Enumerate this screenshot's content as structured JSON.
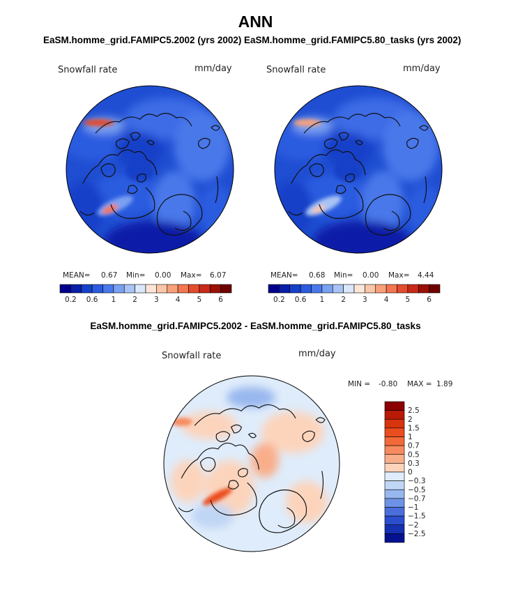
{
  "main_title": "ANN",
  "panels": [
    {
      "title": "EaSM.homme_grid.FAMIPC5.2002 (yrs 2002)",
      "variable": "Snowfall rate",
      "units": "mm/day",
      "stats": {
        "mean_label": "MEAN=",
        "mean": "0.67",
        "min_label": "Min=",
        "min": "0.00",
        "max_label": "Max=",
        "max": "6.07"
      }
    },
    {
      "title": "EaSM.homme_grid.FAMIPC5.80_tasks (yrs 2002)",
      "variable": "Snowfall rate",
      "units": "mm/day",
      "stats": {
        "mean_label": "MEAN=",
        "mean": "0.68",
        "min_label": "Min=",
        "min": "0.00",
        "max_label": "Max=",
        "max": "4.44"
      }
    }
  ],
  "difference": {
    "title": "EaSM.homme_grid.FAMIPC5.2002 - EaSM.homme_grid.FAMIPC5.80_tasks",
    "variable": "Snowfall rate",
    "units": "mm/day",
    "min_label": "MIN =",
    "min": "-0.80",
    "max_label": "MAX =",
    "max": "1.89"
  },
  "chart_data": [
    {
      "type": "heatmap",
      "title": "EaSM.homme_grid.FAMIPC5.2002 (yrs 2002)",
      "map": "north polar stereographic",
      "variable": "Snowfall rate",
      "units": "mm/day",
      "mean": 0.67,
      "min": 0.0,
      "max": 6.07,
      "colorbar_levels": [
        0.2,
        0.4,
        0.6,
        0.8,
        1,
        1.5,
        2,
        2.5,
        3,
        3.5,
        4,
        4.5,
        5,
        5.5,
        6
      ],
      "colorbar_tick_labels": [
        "0.2",
        "0.6",
        "1",
        "2",
        "3",
        "4",
        "5",
        "6"
      ],
      "colorbar_colors": [
        "#00008c",
        "#0a1fa8",
        "#1540c8",
        "#2a5be0",
        "#4a78ea",
        "#7aa0f0",
        "#a8c4f5",
        "#dbe8fb",
        "#fde6d8",
        "#fbc6a8",
        "#f8a07a",
        "#f37650",
        "#e44c2e",
        "#c82a16",
        "#9c1006",
        "#6e0000"
      ]
    },
    {
      "type": "heatmap",
      "title": "EaSM.homme_grid.FAMIPC5.80_tasks (yrs 2002)",
      "map": "north polar stereographic",
      "variable": "Snowfall rate",
      "units": "mm/day",
      "mean": 0.68,
      "min": 0.0,
      "max": 4.44,
      "colorbar_levels": [
        0.2,
        0.4,
        0.6,
        0.8,
        1,
        1.5,
        2,
        2.5,
        3,
        3.5,
        4,
        4.5,
        5,
        5.5,
        6
      ],
      "colorbar_tick_labels": [
        "0.2",
        "0.6",
        "1",
        "2",
        "3",
        "4",
        "5",
        "6"
      ],
      "colorbar_colors": [
        "#00008c",
        "#0a1fa8",
        "#1540c8",
        "#2a5be0",
        "#4a78ea",
        "#7aa0f0",
        "#a8c4f5",
        "#dbe8fb",
        "#fde6d8",
        "#fbc6a8",
        "#f8a07a",
        "#f37650",
        "#e44c2e",
        "#c82a16",
        "#9c1006",
        "#6e0000"
      ]
    },
    {
      "type": "heatmap",
      "title": "EaSM.homme_grid.FAMIPC5.2002 - EaSM.homme_grid.FAMIPC5.80_tasks",
      "map": "north polar stereographic",
      "variable": "Snowfall rate",
      "units": "mm/day",
      "min": -0.8,
      "max": 1.89,
      "colorbar_tick_labels": [
        "2.5",
        "2",
        "1.5",
        "1",
        "0.7",
        "0.5",
        "0.3",
        "0",
        "−0.3",
        "−0.5",
        "−0.7",
        "−1",
        "−1.5",
        "−2",
        "−2.5"
      ],
      "colorbar_colors": [
        "#8b0000",
        "#b81a06",
        "#d8340e",
        "#ea4d1e",
        "#f36a3a",
        "#f78a5e",
        "#f9ae8a",
        "#fcd4bc",
        "#dfecfb",
        "#c0d6f5",
        "#98b7ee",
        "#6e93e6",
        "#4a6fdc",
        "#2a4ecd",
        "#1530b0",
        "#05128f"
      ]
    }
  ]
}
